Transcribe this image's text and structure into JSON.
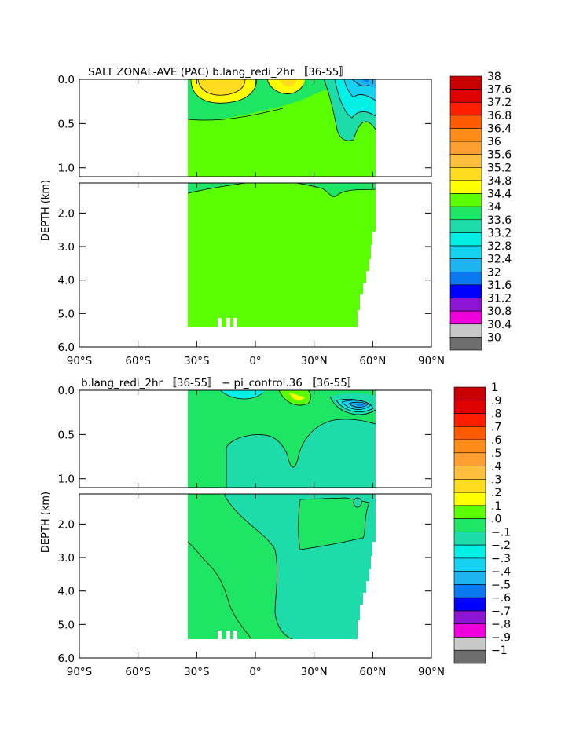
{
  "chart_data": [
    {
      "type": "heatmap",
      "title": "SALT ZONAL-AVE (PAC) b.lang_redi_2hr 〚36-55〛",
      "ylabel": "DEPTH (km)",
      "x_ticks": [
        "90°S",
        "60°S",
        "30°S",
        "0°",
        "30°N",
        "60°N",
        "90°N"
      ],
      "y_ticks_upper": [
        "0.0",
        "0.5",
        "1.0"
      ],
      "y_ticks_lower": [
        "2.0",
        "3.0",
        "4.0",
        "5.0",
        "6.0"
      ],
      "xlim": [
        -90,
        90
      ],
      "ylim": [
        6.0,
        0.0
      ],
      "y_axis_break_km": 1.1,
      "colorbar_labels": [
        "38",
        "37.6",
        "37.2",
        "36.8",
        "36.4",
        "36",
        "35.6",
        "35.2",
        "34.8",
        "34.4",
        "34",
        "33.6",
        "33.2",
        "32.8",
        "32.4",
        "32",
        "31.6",
        "31.2",
        "30.8",
        "30.4",
        "30"
      ],
      "colorbar_colors": [
        "#c80000",
        "#e00000",
        "#ff1e00",
        "#ff5a00",
        "#ff8c19",
        "#ff9f32",
        "#ffbe3c",
        "#ffdc1e",
        "#ffff00",
        "#5aff00",
        "#1ee664",
        "#1edcaa",
        "#00f0e6",
        "#14d2f0",
        "#1eb4f0",
        "#0a78f0",
        "#0000ff",
        "#8c14d2",
        "#f000dc",
        "#c8c8c8",
        "#6e6e6e"
      ]
    },
    {
      "type": "heatmap",
      "title": "b.lang_redi_2hr 〚36-55〛 − pi_control.36 〚36-55〛",
      "ylabel": "DEPTH (km)",
      "x_ticks": [
        "90°S",
        "60°S",
        "30°S",
        "0°",
        "30°N",
        "60°N",
        "90°N"
      ],
      "y_ticks_upper": [
        "0.0",
        "0.5",
        "1.0"
      ],
      "y_ticks_lower": [
        "2.0",
        "3.0",
        "4.0",
        "5.0",
        "6.0"
      ],
      "xlim": [
        -90,
        90
      ],
      "ylim": [
        6.0,
        0.0
      ],
      "y_axis_break_km": 1.1,
      "colorbar_labels": [
        "1",
        ".9",
        ".8",
        ".7",
        ".6",
        ".5",
        ".4",
        ".3",
        ".2",
        ".1",
        ".0",
        "−.1",
        "−.2",
        "−.3",
        "−.4",
        "−.5",
        "−.6",
        "−.7",
        "−.8",
        "−.9",
        "−1"
      ],
      "colorbar_colors": [
        "#c80000",
        "#e00000",
        "#ff1e00",
        "#ff5a00",
        "#ff8c19",
        "#ff9f32",
        "#ffbe3c",
        "#ffdc1e",
        "#ffff00",
        "#5aff00",
        "#1ee664",
        "#1edcaa",
        "#00f0e6",
        "#14d2f0",
        "#1eb4f0",
        "#0a78f0",
        "#0000ff",
        "#8c14d2",
        "#f000dc",
        "#c8c8c8",
        "#6e6e6e"
      ]
    }
  ]
}
